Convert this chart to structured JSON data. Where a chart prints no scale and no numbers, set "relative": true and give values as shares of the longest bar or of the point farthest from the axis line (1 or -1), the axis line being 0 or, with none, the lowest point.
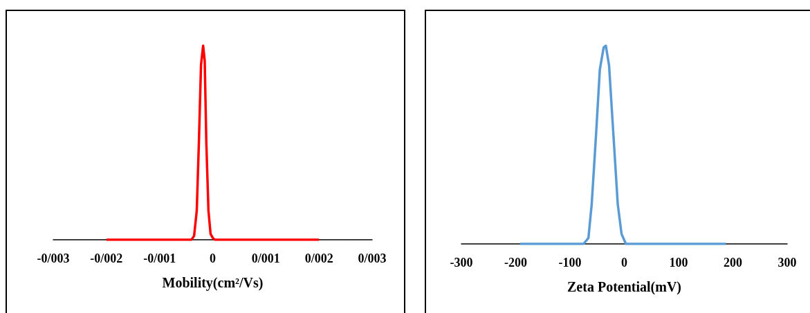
{
  "chart_data": [
    {
      "type": "line",
      "relative": true,
      "marker": "none",
      "xlabel": "Mobility(cm²/Vs)",
      "x": [
        -0.002,
        -0.0004,
        -0.00035,
        -0.0003,
        -0.00026,
        -0.00022,
        -0.00018,
        -0.00015,
        -0.00012,
        -8e-05,
        -4e-05,
        0,
        4e-05,
        0.002
      ],
      "series": [
        {
          "color": "#ff0000",
          "values": [
            0,
            0,
            0.02,
            0.15,
            0.5,
            0.9,
            1,
            0.92,
            0.5,
            0.15,
            0.03,
            0.01,
            0,
            0
          ]
        }
      ],
      "xlim": [
        -0.003,
        0.003
      ],
      "xticks": [
        {
          "value": -0.003,
          "label": "-0/003"
        },
        {
          "value": -0.002,
          "label": "-0/002"
        },
        {
          "value": -0.001,
          "label": "-0/001"
        },
        0,
        {
          "value": 0.001,
          "label": "0/001"
        },
        {
          "value": 0.002,
          "label": "0/002"
        },
        {
          "value": 0.003,
          "label": "0/003"
        }
      ]
    },
    {
      "type": "line",
      "relative": true,
      "marker": "none",
      "xlabel": "Zeta Potential(mV)",
      "x": [
        -192,
        -75,
        -66,
        -60,
        -52,
        -45,
        -38,
        -34,
        -28,
        -20,
        -12,
        -5,
        3,
        187
      ],
      "series": [
        {
          "color": "#5b9bd5",
          "values": [
            0,
            0,
            0.03,
            0.2,
            0.55,
            0.88,
            0.99,
            1,
            0.9,
            0.55,
            0.2,
            0.05,
            0,
            0
          ]
        }
      ],
      "xlim": [
        -300,
        300
      ],
      "xticks": [
        -300,
        -200,
        -100,
        0,
        100,
        200,
        300
      ]
    }
  ]
}
